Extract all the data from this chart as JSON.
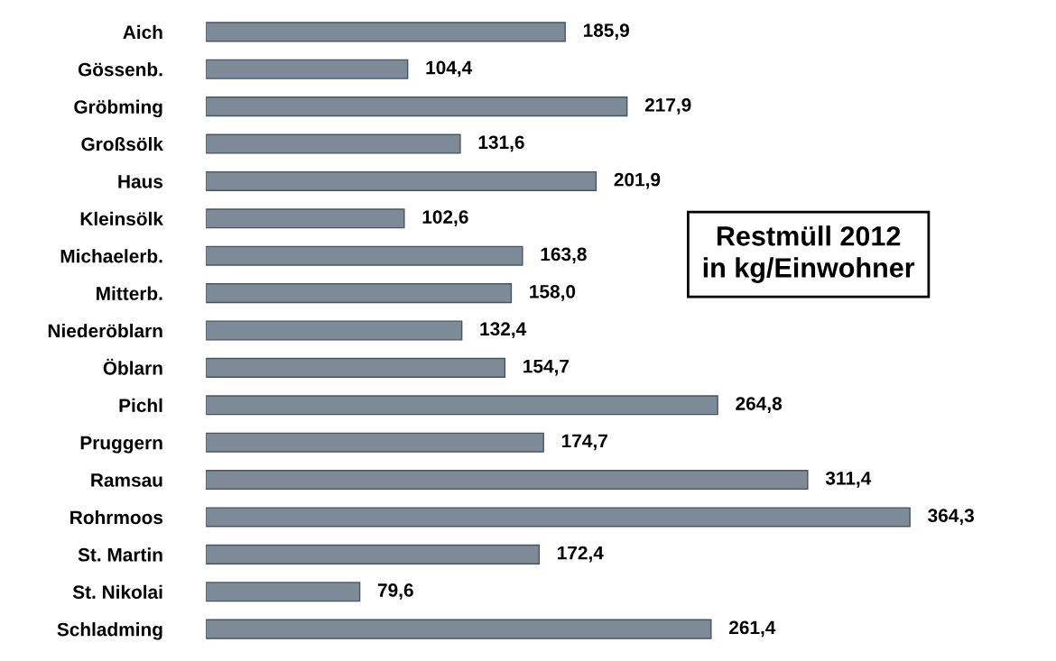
{
  "chart_data": {
    "type": "bar",
    "orientation": "horizontal",
    "title": "Restmüll 2012\nin kg/Einwohner",
    "categories": [
      "Aich",
      "Gössenb.",
      "Gröbming",
      "Großsölk",
      "Haus",
      "Kleinsölk",
      "Michaelerb.",
      "Mitterb.",
      "Niederöblarn",
      "Öblarn",
      "Pichl",
      "Pruggern",
      "Ramsau",
      "Rohrmoos",
      "St. Martin",
      "St. Nikolai",
      "Schladming"
    ],
    "values": [
      185.9,
      104.4,
      217.9,
      131.6,
      201.9,
      102.6,
      163.8,
      158.0,
      132.4,
      154.7,
      264.8,
      174.7,
      311.4,
      364.3,
      172.4,
      79.6,
      261.4
    ],
    "value_labels": [
      "185,9",
      "104,4",
      "217,9",
      "131,6",
      "201,9",
      "102,6",
      "163,8",
      "158,0",
      "132,4",
      "154,7",
      "264,8",
      "174,7",
      "311,4",
      "364,3",
      "172,4",
      "79,6",
      "261,4"
    ],
    "color": "#7d8a97",
    "tick_labels": "y",
    "grid": false,
    "legend": false
  }
}
